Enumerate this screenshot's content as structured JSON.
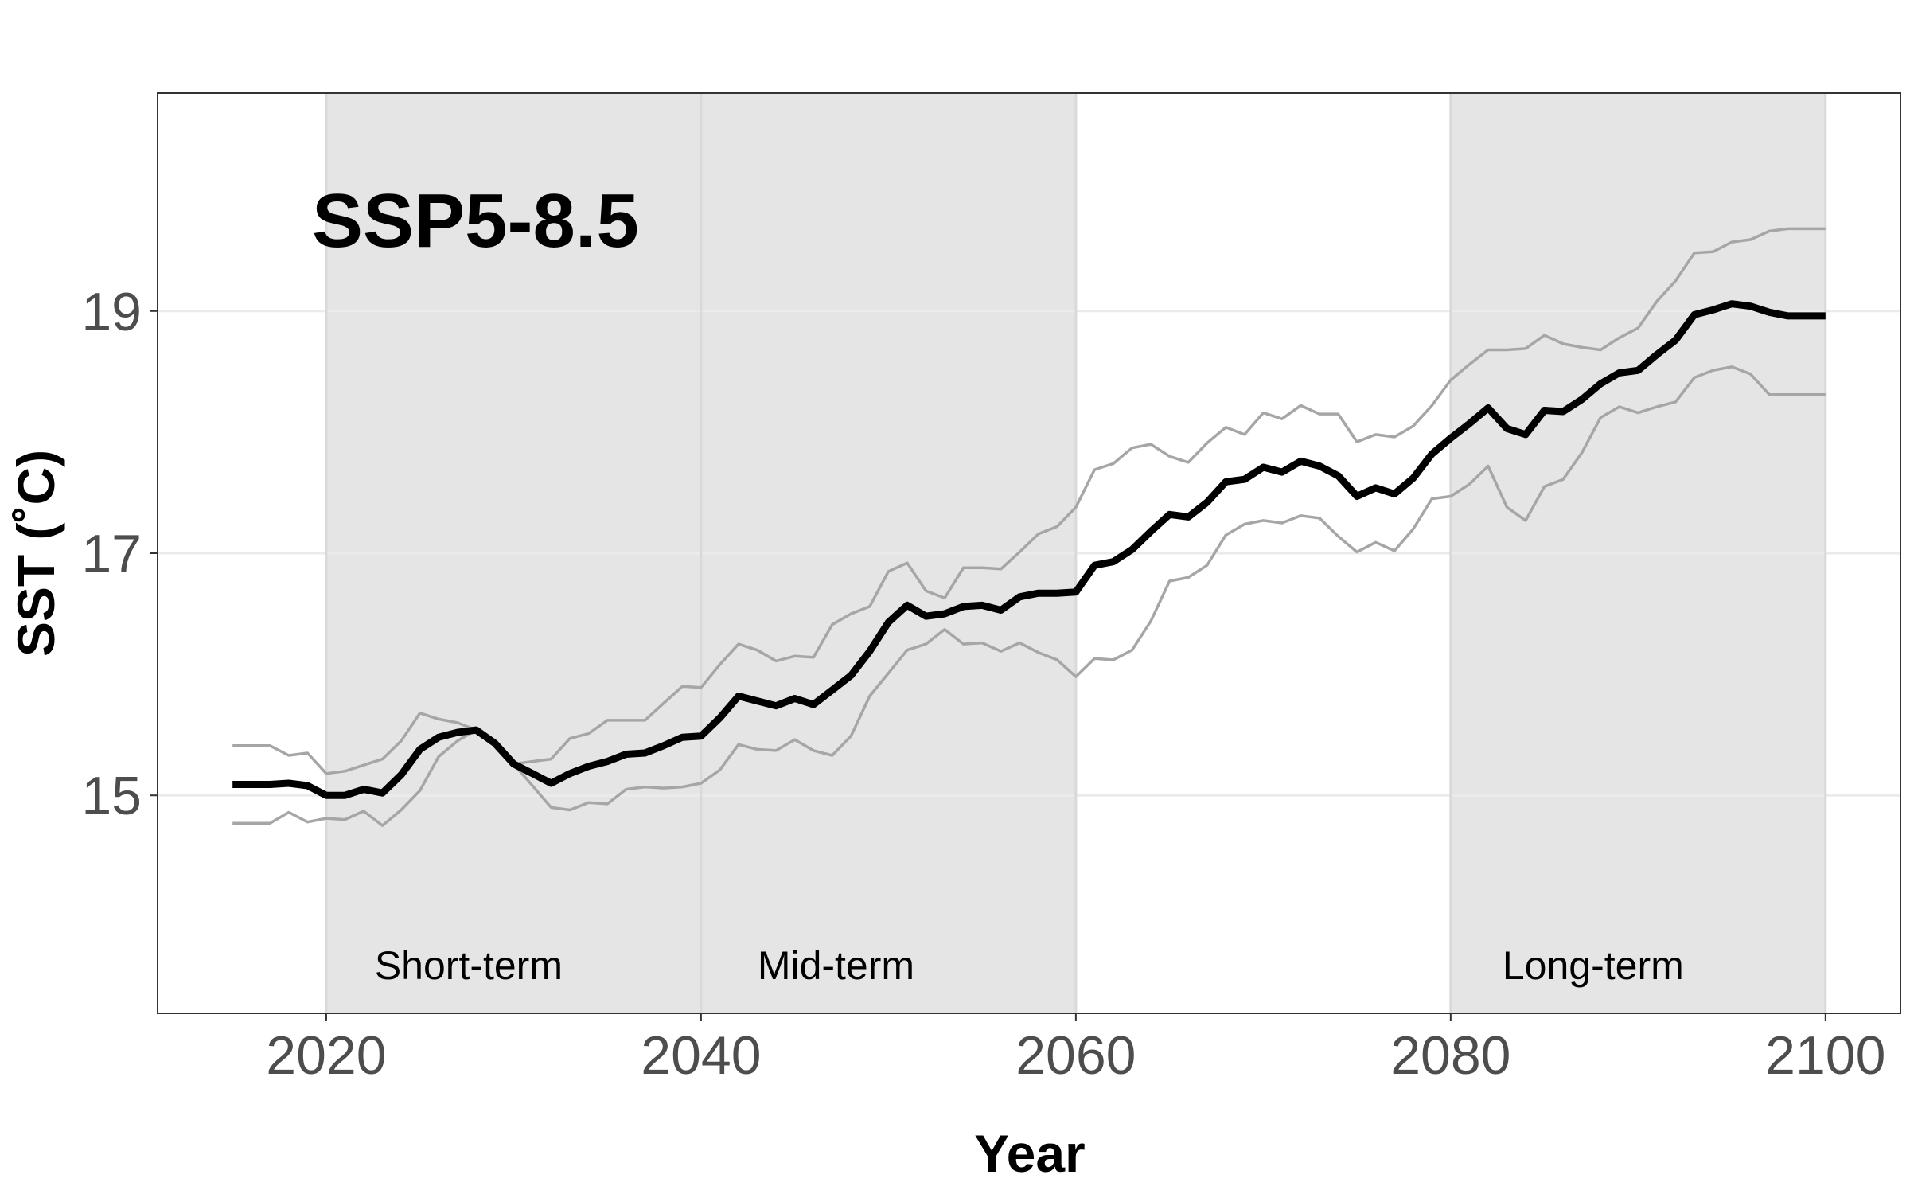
{
  "chart_data": {
    "type": "line",
    "annotation": "SSP5-8.5",
    "xlabel": "Year",
    "ylabel": "SST (˚C)",
    "xlim": [
      2011,
      2104
    ],
    "ylim": [
      13.2,
      20.8
    ],
    "x_ticks": [
      2020,
      2040,
      2060,
      2080,
      2100
    ],
    "y_ticks": [
      15,
      17,
      19
    ],
    "grid": true,
    "shaded_periods": [
      {
        "label": "Short-term",
        "start": 2020,
        "end": 2040
      },
      {
        "label": "Mid-term",
        "start": 2040,
        "end": 2060
      },
      {
        "label": "Long-term",
        "start": 2080,
        "end": 2100
      }
    ],
    "x": [
      2015,
      2016,
      2017,
      2018,
      2019,
      2020,
      2021,
      2022,
      2023,
      2024,
      2025,
      2026,
      2027,
      2028,
      2029,
      2030,
      2031,
      2032,
      2033,
      2034,
      2035,
      2036,
      2037,
      2038,
      2039,
      2040,
      2041,
      2042,
      2043,
      2044,
      2045,
      2046,
      2047,
      2048,
      2049,
      2050,
      2051,
      2052,
      2053,
      2054,
      2055,
      2056,
      2057,
      2058,
      2059,
      2060,
      2061,
      2062,
      2063,
      2064,
      2065,
      2066,
      2067,
      2068,
      2069,
      2070,
      2071,
      2072,
      2073,
      2074,
      2075,
      2076,
      2077,
      2078,
      2079,
      2080,
      2081,
      2082,
      2083,
      2084,
      2085,
      2086,
      2087,
      2088,
      2089,
      2090,
      2091,
      2092,
      2093,
      2094,
      2095,
      2096,
      2097,
      2098,
      2099,
      2100
    ],
    "series": [
      {
        "role": "mean",
        "color": "#000000",
        "values": [
          15.09,
          15.09,
          15.09,
          15.1,
          15.08,
          15.0,
          15.0,
          15.05,
          15.02,
          15.17,
          15.38,
          15.48,
          15.52,
          15.54,
          15.43,
          15.26,
          15.18,
          15.1,
          15.18,
          15.24,
          15.28,
          15.34,
          15.35,
          15.41,
          15.48,
          15.49,
          15.64,
          15.82,
          15.78,
          15.74,
          15.8,
          15.75,
          15.87,
          15.99,
          16.19,
          16.43,
          16.57,
          16.48,
          16.5,
          16.56,
          16.57,
          16.53,
          16.64,
          16.67,
          16.67,
          16.68,
          16.9,
          16.93,
          17.03,
          17.18,
          17.32,
          17.3,
          17.42,
          17.59,
          17.61,
          17.71,
          17.67,
          17.76,
          17.72,
          17.64,
          17.47,
          17.54,
          17.49,
          17.62,
          17.82,
          17.95,
          18.07,
          18.2,
          18.03,
          17.98,
          18.18,
          18.17,
          18.27,
          18.4,
          18.49,
          18.51,
          18.64,
          18.76,
          18.97,
          19.01,
          19.06,
          19.04,
          18.99,
          18.96,
          18.96,
          18.96
        ]
      },
      {
        "role": "upper",
        "color": "#a6a6a6",
        "values": [
          15.41,
          15.41,
          15.41,
          15.33,
          15.35,
          15.18,
          15.2,
          15.25,
          15.3,
          15.45,
          15.68,
          15.63,
          15.6,
          15.54,
          15.43,
          15.26,
          15.28,
          15.3,
          15.47,
          15.51,
          15.62,
          15.62,
          15.62,
          15.76,
          15.9,
          15.89,
          16.08,
          16.25,
          16.2,
          16.11,
          16.15,
          16.14,
          16.41,
          16.5,
          16.56,
          16.85,
          16.92,
          16.69,
          16.63,
          16.88,
          16.88,
          16.87,
          17.01,
          17.16,
          17.22,
          17.38,
          17.69,
          17.74,
          17.87,
          17.9,
          17.8,
          17.75,
          17.91,
          18.04,
          17.98,
          18.16,
          18.11,
          18.22,
          18.15,
          18.15,
          17.92,
          17.98,
          17.96,
          18.05,
          18.22,
          18.43,
          18.56,
          18.68,
          18.68,
          18.69,
          18.8,
          18.73,
          18.7,
          18.68,
          18.78,
          18.86,
          19.08,
          19.25,
          19.48,
          19.49,
          19.57,
          19.59,
          19.66,
          19.68,
          19.68,
          19.68
        ]
      },
      {
        "role": "lower",
        "color": "#a6a6a6",
        "values": [
          14.77,
          14.77,
          14.77,
          14.86,
          14.78,
          14.81,
          14.8,
          14.87,
          14.75,
          14.88,
          15.04,
          15.32,
          15.45,
          15.54,
          15.43,
          15.26,
          15.08,
          14.9,
          14.88,
          14.94,
          14.93,
          15.05,
          15.07,
          15.06,
          15.07,
          15.1,
          15.21,
          15.42,
          15.38,
          15.37,
          15.46,
          15.37,
          15.33,
          15.49,
          15.82,
          16.01,
          16.2,
          16.25,
          16.37,
          16.25,
          16.26,
          16.19,
          16.26,
          16.18,
          16.12,
          15.98,
          16.13,
          16.12,
          16.2,
          16.44,
          16.77,
          16.8,
          16.9,
          17.15,
          17.24,
          17.27,
          17.25,
          17.31,
          17.29,
          17.14,
          17.01,
          17.09,
          17.02,
          17.2,
          17.45,
          17.47,
          17.57,
          17.72,
          17.38,
          17.27,
          17.55,
          17.61,
          17.83,
          18.12,
          18.21,
          18.16,
          18.21,
          18.25,
          18.45,
          18.51,
          18.54,
          18.48,
          18.31,
          18.31,
          18.31,
          18.31
        ]
      }
    ]
  },
  "colors": {
    "panel_border": "#333333",
    "shade": "#e5e5e5",
    "grid": "#ebebeb",
    "shade_grid": "#d9d9d9"
  }
}
